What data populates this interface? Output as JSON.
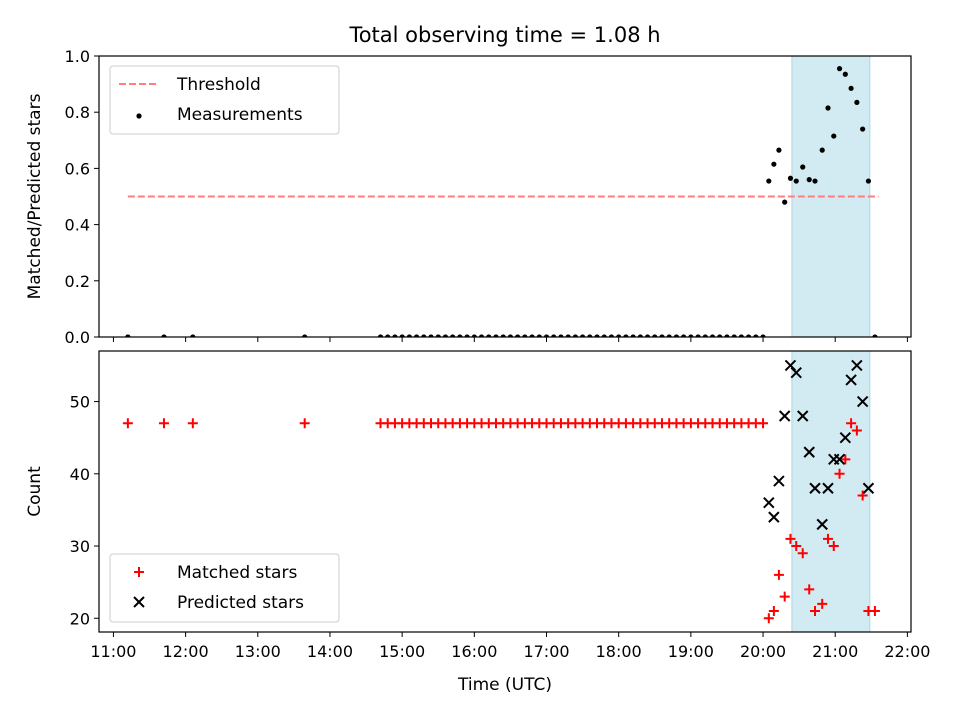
{
  "chart_data": {
    "title": "Total observing time = 1.08 h",
    "xlabel": "Time (UTC)",
    "x_unit": "hour of day (UTC)",
    "xlim": [
      10.8,
      22.05
    ],
    "xtick_values": [
      11,
      12,
      13,
      14,
      15,
      16,
      17,
      18,
      19,
      20,
      21,
      22
    ],
    "xtick_labels": [
      "11:00",
      "12:00",
      "13:00",
      "14:00",
      "15:00",
      "16:00",
      "17:00",
      "18:00",
      "19:00",
      "20:00",
      "21:00",
      "22:00"
    ],
    "observing_window": {
      "start": 20.4,
      "end": 21.48,
      "color": "#add8e6"
    },
    "panels": [
      {
        "type": "scatter",
        "name": "ratio",
        "ylabel": "Matched/Predicted stars",
        "ylim": [
          0,
          1.0
        ],
        "yticks": [
          0.0,
          0.2,
          0.4,
          0.6,
          0.8,
          1.0
        ],
        "ytick_labels": [
          "0.0",
          "0.2",
          "0.4",
          "0.6",
          "0.8",
          "1.0"
        ],
        "threshold": {
          "name": "Threshold",
          "value": 0.5,
          "x_range": [
            11.2,
            21.6
          ],
          "color": "#ff7f7f"
        },
        "legend": [
          "Threshold",
          "Measurements"
        ],
        "legend_loc": "upper-left",
        "series": [
          {
            "name": "Measurements",
            "marker": "dot",
            "color": "#000000",
            "x": [
              11.2,
              11.7,
              12.1,
              13.65,
              14.7,
              14.8,
              14.9,
              15.0,
              15.1,
              15.2,
              15.3,
              15.4,
              15.5,
              15.6,
              15.7,
              15.8,
              15.9,
              16.0,
              16.1,
              16.2,
              16.3,
              16.4,
              16.5,
              16.6,
              16.7,
              16.8,
              16.9,
              17.0,
              17.1,
              17.2,
              17.3,
              17.4,
              17.5,
              17.6,
              17.7,
              17.8,
              17.9,
              18.0,
              18.1,
              18.2,
              18.3,
              18.4,
              18.5,
              18.6,
              18.7,
              18.8,
              18.9,
              19.0,
              19.1,
              19.2,
              19.3,
              19.4,
              19.5,
              19.6,
              19.7,
              19.8,
              19.9,
              20.0,
              20.08,
              20.15,
              20.22,
              20.3,
              20.38,
              20.46,
              20.55,
              20.64,
              20.72,
              20.82,
              20.9,
              20.98,
              21.06,
              21.14,
              21.22,
              21.3,
              21.38,
              21.46,
              21.55
            ],
            "y": [
              0,
              0,
              0,
              0,
              0,
              0,
              0,
              0,
              0,
              0,
              0,
              0,
              0,
              0,
              0,
              0,
              0,
              0,
              0,
              0,
              0,
              0,
              0,
              0,
              0,
              0,
              0,
              0,
              0,
              0,
              0,
              0,
              0,
              0,
              0,
              0,
              0,
              0,
              0,
              0,
              0,
              0,
              0,
              0,
              0,
              0,
              0,
              0,
              0,
              0,
              0,
              0,
              0,
              0,
              0,
              0,
              0,
              0,
              0.555,
              0.615,
              0.665,
              0.48,
              0.565,
              0.555,
              0.605,
              0.56,
              0.555,
              0.665,
              0.815,
              0.715,
              0.955,
              0.935,
              0.885,
              0.835,
              0.74,
              0.555,
              0
            ]
          }
        ]
      },
      {
        "type": "scatter",
        "name": "counts",
        "ylabel": "Count",
        "ylim": [
          18.1,
          57
        ],
        "yticks": [
          20,
          30,
          40,
          50
        ],
        "ytick_labels": [
          "20",
          "30",
          "40",
          "50"
        ],
        "legend": [
          "Matched stars",
          "Predicted stars"
        ],
        "legend_loc": "lower-left",
        "series": [
          {
            "name": "Matched stars",
            "marker": "plus",
            "color": "#ff0000",
            "x": [
              11.2,
              11.7,
              12.1,
              13.65,
              14.7,
              14.8,
              14.9,
              15.0,
              15.1,
              15.2,
              15.3,
              15.4,
              15.5,
              15.6,
              15.7,
              15.8,
              15.9,
              16.0,
              16.1,
              16.2,
              16.3,
              16.4,
              16.5,
              16.6,
              16.7,
              16.8,
              16.9,
              17.0,
              17.1,
              17.2,
              17.3,
              17.4,
              17.5,
              17.6,
              17.7,
              17.8,
              17.9,
              18.0,
              18.1,
              18.2,
              18.3,
              18.4,
              18.5,
              18.6,
              18.7,
              18.8,
              18.9,
              19.0,
              19.1,
              19.2,
              19.3,
              19.4,
              19.5,
              19.6,
              19.7,
              19.8,
              19.9,
              20.0,
              20.08,
              20.15,
              20.22,
              20.3,
              20.38,
              20.46,
              20.55,
              20.64,
              20.72,
              20.82,
              20.9,
              20.98,
              21.06,
              21.14,
              21.22,
              21.3,
              21.38,
              21.46,
              21.55
            ],
            "y": [
              47,
              47,
              47,
              47,
              47,
              47,
              47,
              47,
              47,
              47,
              47,
              47,
              47,
              47,
              47,
              47,
              47,
              47,
              47,
              47,
              47,
              47,
              47,
              47,
              47,
              47,
              47,
              47,
              47,
              47,
              47,
              47,
              47,
              47,
              47,
              47,
              47,
              47,
              47,
              47,
              47,
              47,
              47,
              47,
              47,
              47,
              47,
              47,
              47,
              47,
              47,
              47,
              47,
              47,
              47,
              47,
              47,
              47,
              20,
              21,
              26,
              23,
              31,
              30,
              29,
              24,
              21,
              22,
              31,
              30,
              40,
              42,
              47,
              46,
              37,
              21,
              21
            ]
          },
          {
            "name": "Predicted stars",
            "marker": "x",
            "color": "#000000",
            "x": [
              20.08,
              20.15,
              20.22,
              20.3,
              20.38,
              20.46,
              20.55,
              20.64,
              20.72,
              20.82,
              20.9,
              20.98,
              21.06,
              21.14,
              21.22,
              21.3,
              21.38,
              21.46
            ],
            "y": [
              36,
              34,
              39,
              48,
              55,
              54,
              48,
              43,
              38,
              33,
              38,
              42,
              42,
              45,
              53,
              55,
              50,
              38
            ]
          }
        ]
      }
    ]
  }
}
